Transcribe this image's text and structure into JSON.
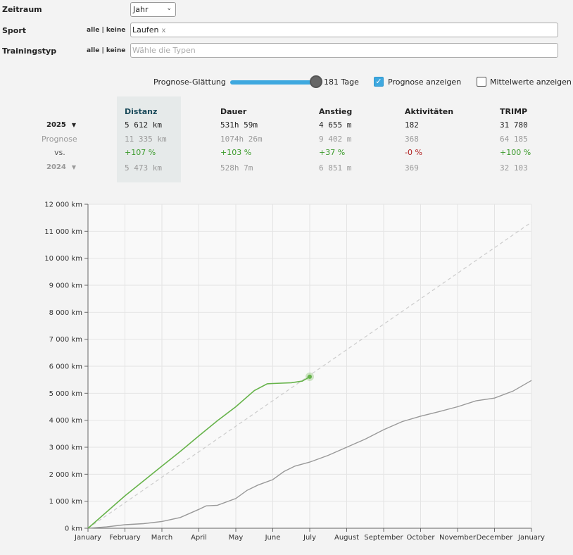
{
  "filters": {
    "zeitraum_label": "Zeitraum",
    "zeitraum_value": "Jahr",
    "sport_label": "Sport",
    "sport_allnone": "alle | keine",
    "sport_value": "Laufen",
    "sport_remove": "x",
    "typ_label": "Trainingstyp",
    "typ_allnone": "alle | keine",
    "typ_placeholder": "Wähle die Typen"
  },
  "controls": {
    "smoothing_label": "Prognose-Glättung",
    "smoothing_fraction": 1.0,
    "smoothing_value": "181 Tage",
    "forecast_label": "Prognose anzeigen",
    "forecast_checked": true,
    "averages_label": "Mittelwerte anzeigen",
    "averages_checked": false
  },
  "stats": {
    "headers": [
      "Distanz",
      "Dauer",
      "Anstieg",
      "Aktivitäten",
      "TRIMP"
    ],
    "current_year": "2025",
    "current": [
      "5 612 km",
      "531h 59m",
      "4 655 m",
      "182",
      "31 780"
    ],
    "forecast_label": "Prognose",
    "forecast": [
      "11 335 km",
      "1074h 26m",
      "9 402 m",
      "368",
      "64 185"
    ],
    "vs_label": "vs.",
    "vs": [
      "+107 %",
      "+103 %",
      "+37 %",
      "-0 %",
      "+100 %"
    ],
    "vs_sign": [
      "pos",
      "pos",
      "pos",
      "neg",
      "pos"
    ],
    "compare_year": "2024",
    "compare": [
      "5 473 km",
      "528h 7m",
      "6 851 m",
      "369",
      "32 103"
    ]
  },
  "colors": {
    "current": "#66b34a",
    "compare": "#999999",
    "forecast": "#cccccc",
    "accent": "#3ea8df"
  },
  "chart_data": {
    "type": "line",
    "y_unit": "km",
    "ylim": [
      0,
      12000
    ],
    "yticks": [
      0,
      1000,
      2000,
      3000,
      4000,
      5000,
      6000,
      7000,
      8000,
      9000,
      10000,
      11000,
      12000
    ],
    "ytick_labels": [
      "0 km",
      "1 000 km",
      "2 000 km",
      "3 000 km",
      "4 000 km",
      "5 000 km",
      "6 000 km",
      "7 000 km",
      "8 000 km",
      "9 000 km",
      "10 000 km",
      "11 000 km",
      "12 000 km"
    ],
    "xtick_labels": [
      "January",
      "February",
      "March",
      "April",
      "May",
      "June",
      "July",
      "August",
      "September",
      "October",
      "November",
      "December",
      "January"
    ],
    "grid": true,
    "series": [
      {
        "key": "current",
        "x": [
          0,
          0.5,
          1,
          1.5,
          2,
          2.5,
          3,
          3.5,
          4,
          4.5,
          4.85,
          5,
          5.5,
          5.8,
          6.0
        ],
        "y": [
          0,
          600,
          1200,
          1750,
          2300,
          2850,
          3420,
          3980,
          4500,
          5100,
          5350,
          5360,
          5390,
          5450,
          5612
        ]
      },
      {
        "key": "compare",
        "x": [
          0,
          0.5,
          1,
          1.5,
          2,
          2.5,
          3,
          3.2,
          3.5,
          4,
          4.3,
          4.6,
          5,
          5.3,
          5.6,
          6,
          6.5,
          7,
          7.5,
          8,
          8.5,
          9,
          9.5,
          10,
          10.5,
          11,
          11.5,
          12
        ],
        "y": [
          0,
          50,
          130,
          170,
          250,
          400,
          700,
          830,
          850,
          1100,
          1400,
          1600,
          1800,
          2100,
          2300,
          2450,
          2700,
          3000,
          3300,
          3650,
          3950,
          4150,
          4320,
          4500,
          4720,
          4820,
          5080,
          5473
        ]
      },
      {
        "key": "forecast",
        "x": [
          0,
          12
        ],
        "y": [
          0,
          11335
        ]
      }
    ],
    "marker": {
      "x": 6.0,
      "y": 5612
    }
  }
}
